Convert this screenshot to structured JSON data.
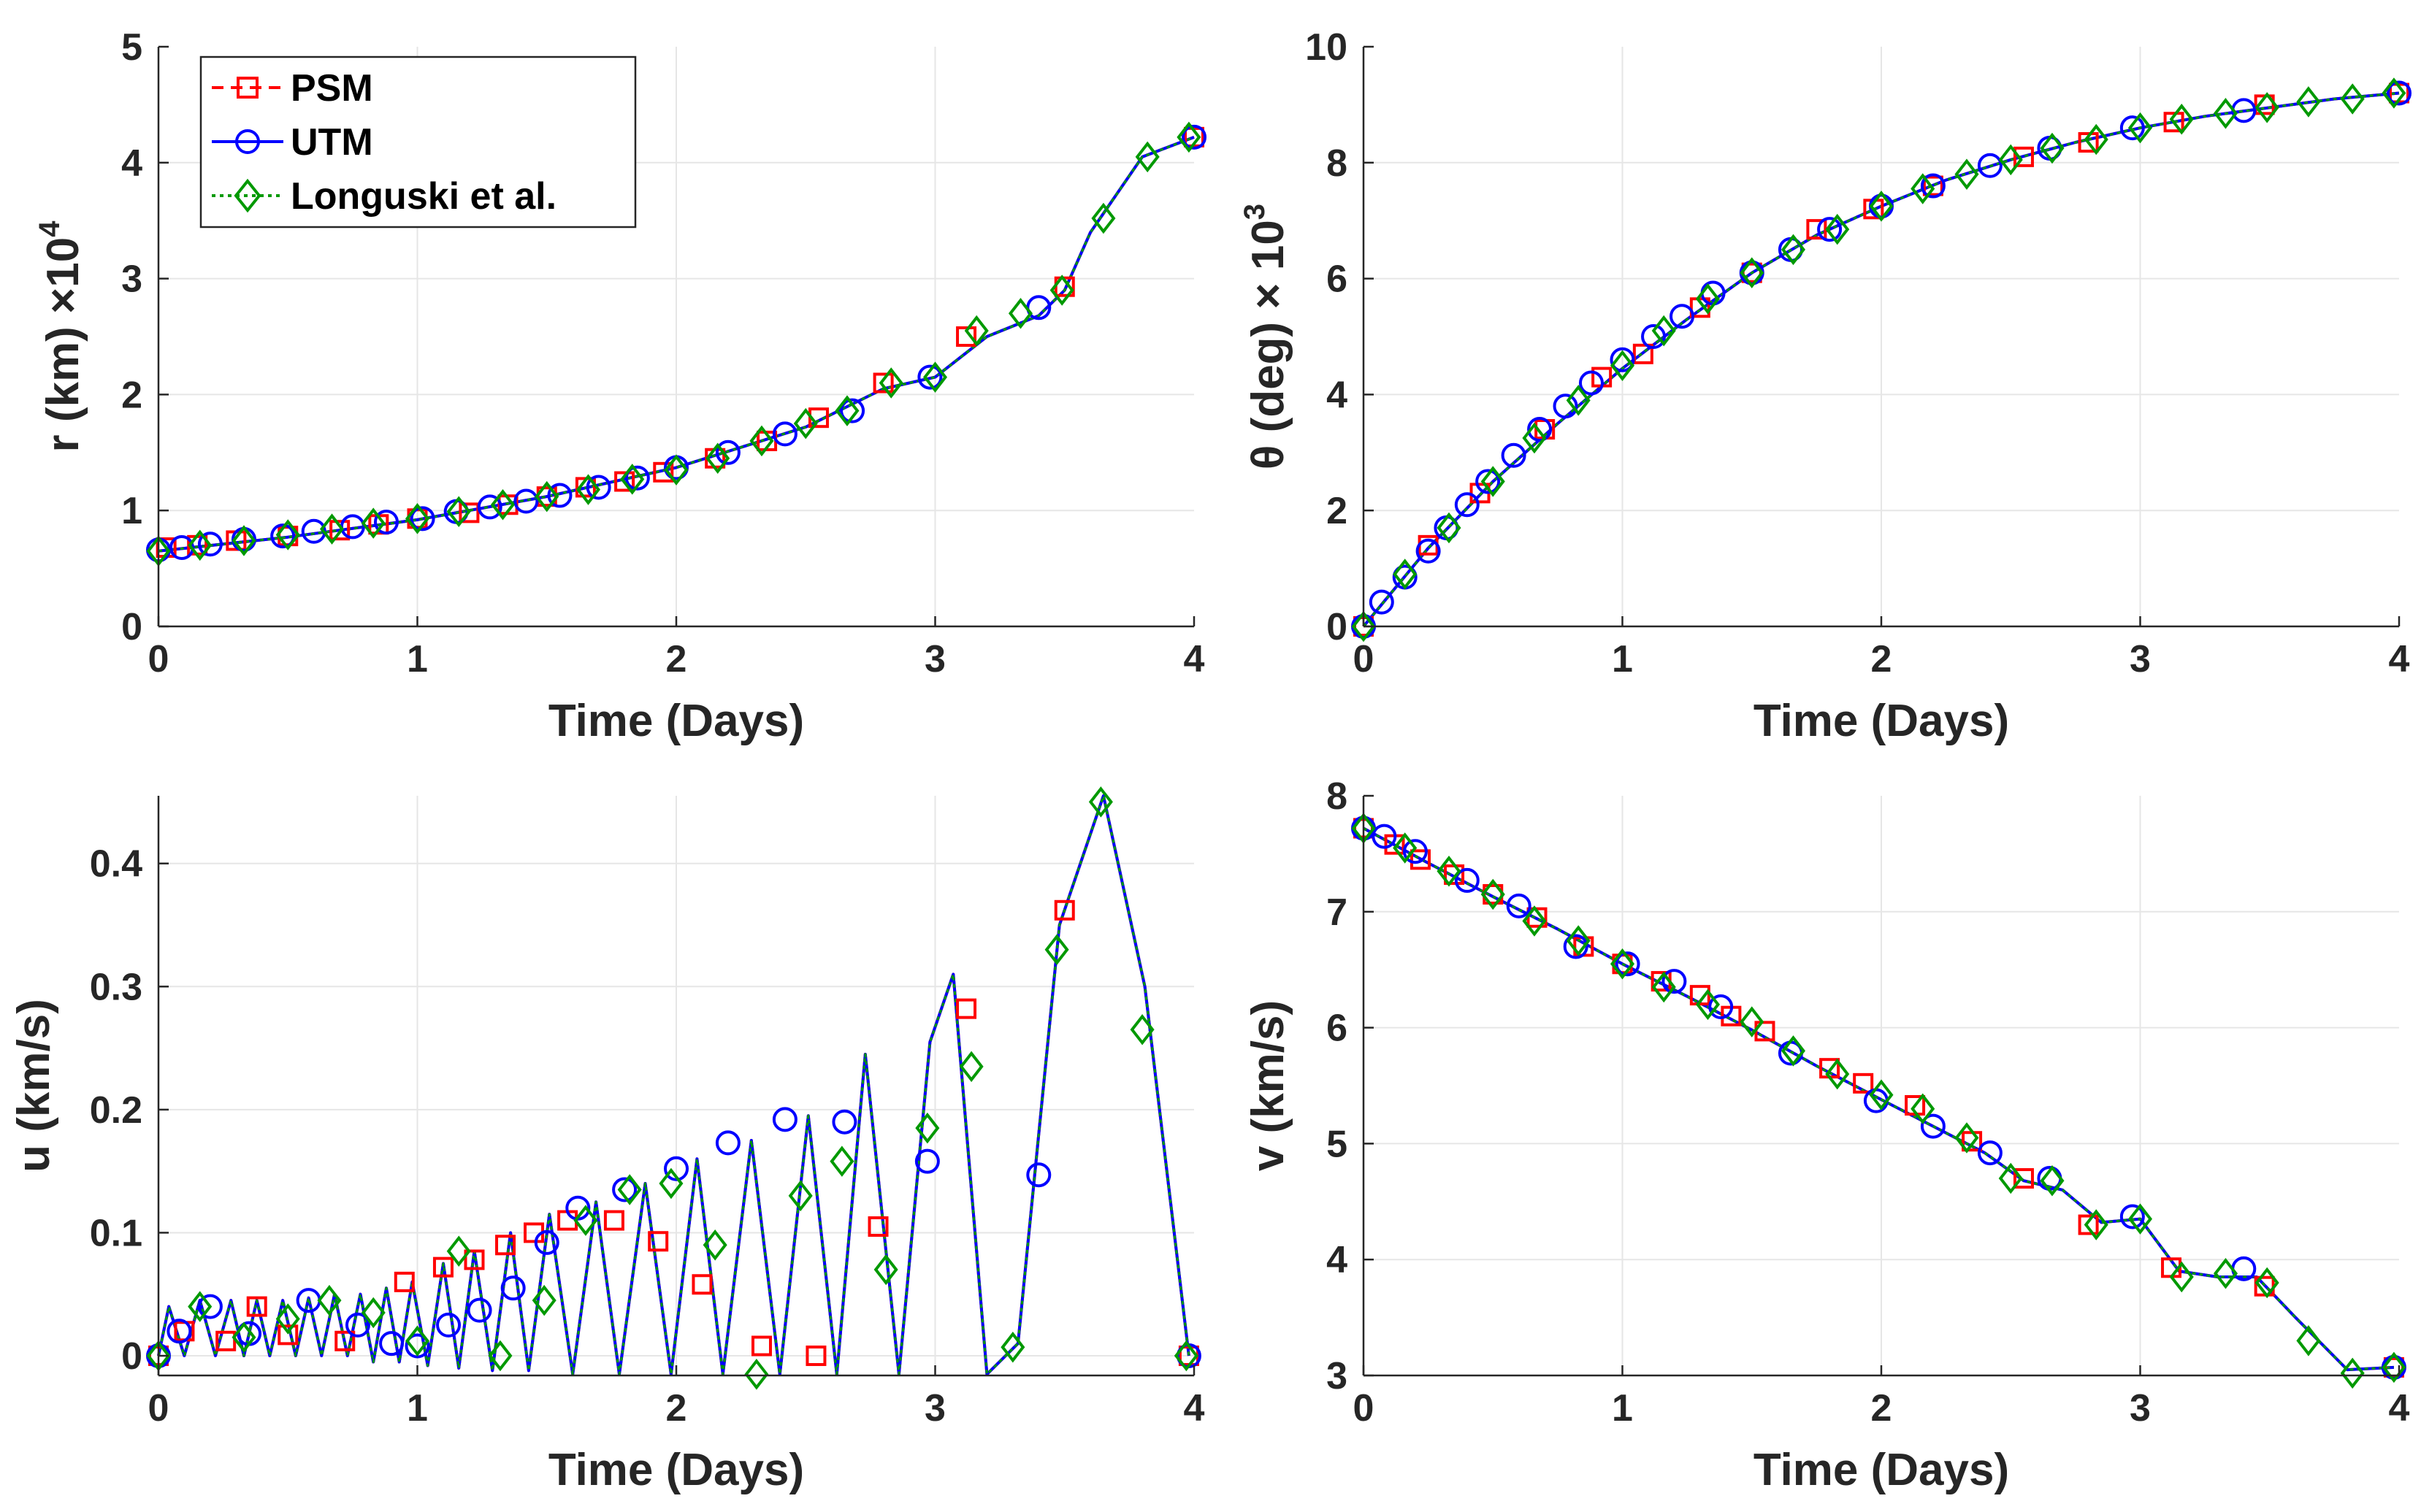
{
  "legend": {
    "entries": [
      {
        "key": "psm",
        "label": "PSM",
        "color": "#ff0000",
        "marker": "square",
        "dash": "dashed"
      },
      {
        "key": "utm",
        "label": "UTM",
        "color": "#0000ff",
        "marker": "circle",
        "dash": "solid"
      },
      {
        "key": "lon",
        "label": "Longuski et al.",
        "color": "#009900",
        "marker": "diamond",
        "dash": "dotted"
      }
    ]
  },
  "chart_data": [
    {
      "id": "r",
      "type": "line",
      "xlabel": "Time (Days)",
      "ylabel": "r (km) ×10",
      "ylabel_exponent": "4",
      "xlim": [
        0,
        4
      ],
      "ylim": [
        0,
        5
      ],
      "xticks": [
        0,
        1,
        2,
        3,
        4
      ],
      "yticks": [
        0,
        1,
        2,
        3,
        4,
        5
      ],
      "grid": true,
      "curve": {
        "x": [
          0,
          0.5,
          1,
          1.5,
          2,
          2.5,
          2.8,
          3,
          3.2,
          3.4,
          3.5,
          3.6,
          3.8,
          4
        ],
        "y": [
          0.65,
          0.77,
          0.92,
          1.12,
          1.37,
          1.72,
          2.05,
          2.15,
          2.5,
          2.68,
          2.9,
          3.4,
          4.05,
          4.22
        ]
      },
      "series": [
        {
          "name": "PSM",
          "x": [
            0.03,
            0.15,
            0.3,
            0.5,
            0.7,
            0.85,
            1.0,
            1.2,
            1.35,
            1.5,
            1.65,
            1.8,
            1.95,
            2.15,
            2.35,
            2.55,
            2.8,
            3.12,
            3.5,
            4.0
          ],
          "y": [
            0.68,
            0.7,
            0.74,
            0.78,
            0.83,
            0.88,
            0.93,
            0.98,
            1.05,
            1.12,
            1.2,
            1.25,
            1.33,
            1.45,
            1.6,
            1.8,
            2.1,
            2.5,
            2.93,
            4.22
          ]
        },
        {
          "name": "UTM",
          "x": [
            0.0,
            0.09,
            0.2,
            0.33,
            0.48,
            0.6,
            0.75,
            0.88,
            1.02,
            1.15,
            1.28,
            1.42,
            1.55,
            1.7,
            1.85,
            2.0,
            2.2,
            2.42,
            2.68,
            2.98,
            3.4,
            4.0
          ],
          "y": [
            0.66,
            0.68,
            0.71,
            0.75,
            0.78,
            0.82,
            0.86,
            0.9,
            0.93,
            0.99,
            1.03,
            1.08,
            1.13,
            1.2,
            1.28,
            1.37,
            1.5,
            1.66,
            1.86,
            2.15,
            2.75,
            4.22
          ]
        },
        {
          "name": "Longuski et al.",
          "x": [
            0.0,
            0.16,
            0.33,
            0.5,
            0.67,
            0.83,
            1.0,
            1.16,
            1.33,
            1.5,
            1.66,
            1.83,
            2.0,
            2.16,
            2.33,
            2.5,
            2.66,
            2.83,
            3.0,
            3.16,
            3.33,
            3.49,
            3.65,
            3.82,
            3.98
          ],
          "y": [
            0.65,
            0.7,
            0.74,
            0.79,
            0.84,
            0.89,
            0.93,
            0.99,
            1.05,
            1.12,
            1.18,
            1.27,
            1.35,
            1.45,
            1.6,
            1.75,
            1.86,
            2.1,
            2.15,
            2.55,
            2.7,
            2.9,
            3.52,
            4.05,
            4.22
          ]
        }
      ]
    },
    {
      "id": "theta",
      "type": "line",
      "xlabel": "Time (Days)",
      "ylabel": "θ (deg) × 10",
      "ylabel_exponent": "3",
      "xlim": [
        0,
        4
      ],
      "ylim": [
        0,
        10
      ],
      "xticks": [
        0,
        1,
        2,
        3,
        4
      ],
      "yticks": [
        0,
        2,
        4,
        6,
        8,
        10
      ],
      "grid": true,
      "curve": {
        "x": [
          0,
          0.25,
          0.5,
          0.75,
          1,
          1.25,
          1.5,
          1.75,
          2,
          2.25,
          2.5,
          2.75,
          3,
          3.25,
          3.5,
          3.75,
          4
        ],
        "y": [
          0,
          1.35,
          2.5,
          3.5,
          4.45,
          5.3,
          6.1,
          6.75,
          7.25,
          7.7,
          8.05,
          8.35,
          8.6,
          8.8,
          8.95,
          9.1,
          9.2
        ]
      },
      "series": [
        {
          "name": "PSM",
          "x": [
            0.0,
            0.25,
            0.45,
            0.7,
            0.92,
            1.08,
            1.3,
            1.5,
            1.75,
            1.97,
            2.2,
            2.55,
            2.8,
            3.13,
            3.48,
            4.0
          ],
          "y": [
            0,
            1.4,
            2.3,
            3.4,
            4.3,
            4.7,
            5.5,
            6.1,
            6.85,
            7.2,
            7.6,
            8.1,
            8.35,
            8.7,
            9.0,
            9.2
          ]
        },
        {
          "name": "UTM",
          "x": [
            0.0,
            0.07,
            0.16,
            0.25,
            0.32,
            0.4,
            0.48,
            0.58,
            0.68,
            0.78,
            0.88,
            1.0,
            1.12,
            1.23,
            1.35,
            1.5,
            1.65,
            1.8,
            2.0,
            2.2,
            2.42,
            2.65,
            2.97,
            3.4,
            4.0
          ],
          "y": [
            0,
            0.42,
            0.85,
            1.3,
            1.7,
            2.1,
            2.5,
            2.95,
            3.4,
            3.8,
            4.2,
            4.6,
            5.0,
            5.35,
            5.75,
            6.1,
            6.5,
            6.85,
            7.25,
            7.6,
            7.95,
            8.25,
            8.6,
            8.9,
            9.2
          ]
        },
        {
          "name": "Longuski et al.",
          "x": [
            0.0,
            0.16,
            0.33,
            0.5,
            0.66,
            0.83,
            1.0,
            1.16,
            1.33,
            1.5,
            1.66,
            1.83,
            2.0,
            2.16,
            2.33,
            2.5,
            2.66,
            2.83,
            3.0,
            3.16,
            3.33,
            3.49,
            3.65,
            3.82,
            3.98
          ],
          "y": [
            0,
            0.9,
            1.7,
            2.5,
            3.25,
            3.9,
            4.5,
            5.1,
            5.65,
            6.1,
            6.5,
            6.85,
            7.25,
            7.55,
            7.8,
            8.05,
            8.25,
            8.4,
            8.6,
            8.75,
            8.85,
            8.95,
            9.05,
            9.1,
            9.2
          ]
        }
      ]
    },
    {
      "id": "u",
      "type": "line",
      "xlabel": "Time (Days)",
      "ylabel": "u (km/s)",
      "xlim": [
        0,
        4
      ],
      "ylim": [
        -0.016,
        0.455
      ],
      "xticks": [
        0,
        1,
        2,
        3,
        4
      ],
      "yticks": [
        0,
        0.1,
        0.2,
        0.3,
        0.4
      ],
      "ytick_labels": [
        "0",
        "0.1",
        "0.2",
        "0.3",
        "0.4"
      ],
      "grid": true,
      "curve": {
        "x": [
          0,
          0.04,
          0.1,
          0.16,
          0.22,
          0.28,
          0.33,
          0.38,
          0.43,
          0.48,
          0.53,
          0.58,
          0.63,
          0.68,
          0.73,
          0.78,
          0.83,
          0.88,
          0.93,
          0.98,
          1.04,
          1.1,
          1.16,
          1.22,
          1.29,
          1.36,
          1.43,
          1.51,
          1.6,
          1.69,
          1.78,
          1.88,
          1.98,
          2.08,
          2.18,
          2.29,
          2.4,
          2.51,
          2.62,
          2.73,
          2.86,
          2.98,
          3.07,
          3.2,
          3.32,
          3.48,
          3.65,
          3.81,
          3.98
        ],
        "y": [
          0,
          0.04,
          0.0,
          0.045,
          0.0,
          0.045,
          0.0,
          0.045,
          0.0,
          0.045,
          0.0,
          0.047,
          0.0,
          0.05,
          0.0,
          0.05,
          -0.005,
          0.055,
          -0.005,
          0.06,
          -0.008,
          0.075,
          -0.01,
          0.085,
          -0.012,
          0.1,
          -0.012,
          0.115,
          -0.015,
          0.125,
          -0.015,
          0.14,
          -0.015,
          0.16,
          -0.015,
          0.175,
          -0.015,
          0.195,
          -0.015,
          0.245,
          -0.015,
          0.255,
          0.31,
          -0.015,
          0.01,
          0.35,
          0.455,
          0.3,
          0.0
        ]
      },
      "series": [
        {
          "name": "PSM",
          "x": [
            0.0,
            0.1,
            0.26,
            0.38,
            0.5,
            0.72,
            0.95,
            1.1,
            1.22,
            1.34,
            1.45,
            1.58,
            1.76,
            1.93,
            2.1,
            2.33,
            2.54,
            2.78,
            3.12,
            3.5,
            3.98
          ],
          "y": [
            0.0,
            0.02,
            0.012,
            0.04,
            0.017,
            0.012,
            0.06,
            0.072,
            0.078,
            0.09,
            0.1,
            0.11,
            0.11,
            0.093,
            0.058,
            0.008,
            0.0,
            0.105,
            0.282,
            0.362,
            0.0
          ]
        },
        {
          "name": "UTM",
          "x": [
            0.0,
            0.08,
            0.2,
            0.35,
            0.58,
            0.77,
            0.9,
            1.0,
            1.12,
            1.24,
            1.37,
            1.5,
            1.62,
            1.8,
            2.0,
            2.2,
            2.42,
            2.65,
            2.97,
            3.4,
            3.98
          ],
          "y": [
            0.0,
            0.02,
            0.04,
            0.018,
            0.045,
            0.025,
            0.01,
            0.008,
            0.025,
            0.037,
            0.055,
            0.092,
            0.12,
            0.135,
            0.152,
            0.173,
            0.192,
            0.19,
            0.158,
            0.147,
            0.0
          ]
        },
        {
          "name": "Longuski et al.",
          "x": [
            0.0,
            0.16,
            0.33,
            0.5,
            0.66,
            0.83,
            1.0,
            1.16,
            1.32,
            1.49,
            1.65,
            1.82,
            1.98,
            2.15,
            2.31,
            2.48,
            2.64,
            2.81,
            2.97,
            3.14,
            3.3,
            3.47,
            3.64,
            3.8,
            3.97
          ],
          "y": [
            0.0,
            0.04,
            0.015,
            0.03,
            0.045,
            0.035,
            0.012,
            0.085,
            0.0,
            0.045,
            0.11,
            0.135,
            0.14,
            0.09,
            -0.015,
            0.13,
            0.158,
            0.07,
            0.185,
            0.235,
            0.007,
            0.33,
            0.45,
            0.265,
            0.0
          ]
        }
      ]
    },
    {
      "id": "v",
      "type": "line",
      "xlabel": "Time (Days)",
      "ylabel": "v (km/s)",
      "xlim": [
        0,
        4
      ],
      "ylim": [
        3,
        8
      ],
      "xticks": [
        0,
        1,
        2,
        3,
        4
      ],
      "yticks": [
        3,
        4,
        5,
        6,
        7,
        8
      ],
      "grid": true,
      "curve": {
        "x": [
          0,
          0.25,
          0.5,
          0.75,
          1,
          1.25,
          1.5,
          1.75,
          2,
          2.2,
          2.4,
          2.55,
          2.7,
          2.85,
          3.0,
          3.15,
          3.3,
          3.45,
          3.6,
          3.8,
          3.98
        ],
        "y": [
          7.72,
          7.42,
          7.13,
          6.85,
          6.55,
          6.27,
          5.98,
          5.67,
          5.38,
          5.15,
          4.92,
          4.68,
          4.6,
          4.32,
          4.35,
          3.9,
          3.85,
          3.85,
          3.5,
          3.05,
          3.07
        ]
      },
      "series": [
        {
          "name": "PSM",
          "x": [
            0.0,
            0.12,
            0.22,
            0.35,
            0.5,
            0.67,
            0.85,
            1.0,
            1.15,
            1.3,
            1.42,
            1.55,
            1.8,
            1.93,
            2.13,
            2.35,
            2.55,
            2.8,
            3.12,
            3.48,
            3.98
          ],
          "y": [
            7.72,
            7.58,
            7.45,
            7.32,
            7.15,
            6.95,
            6.7,
            6.55,
            6.4,
            6.28,
            6.1,
            5.97,
            5.65,
            5.52,
            5.33,
            5.02,
            4.7,
            4.3,
            3.93,
            3.77,
            3.07
          ]
        },
        {
          "name": "UTM",
          "x": [
            0.0,
            0.08,
            0.2,
            0.4,
            0.6,
            0.82,
            1.02,
            1.2,
            1.38,
            1.65,
            1.98,
            2.2,
            2.42,
            2.65,
            2.97,
            3.4,
            3.98
          ],
          "y": [
            7.72,
            7.65,
            7.52,
            7.27,
            7.05,
            6.7,
            6.55,
            6.4,
            6.18,
            5.78,
            5.37,
            5.15,
            4.92,
            4.7,
            4.37,
            3.92,
            3.07
          ]
        },
        {
          "name": "Longuski et al.",
          "x": [
            0.0,
            0.16,
            0.33,
            0.5,
            0.66,
            0.83,
            1.0,
            1.16,
            1.33,
            1.5,
            1.66,
            1.83,
            2.0,
            2.16,
            2.33,
            2.5,
            2.66,
            2.83,
            3.0,
            3.16,
            3.33,
            3.49,
            3.65,
            3.82,
            3.98
          ],
          "y": [
            7.72,
            7.55,
            7.35,
            7.15,
            6.92,
            6.75,
            6.55,
            6.35,
            6.2,
            6.05,
            5.8,
            5.6,
            5.42,
            5.3,
            5.05,
            4.7,
            4.68,
            4.3,
            4.35,
            3.85,
            3.88,
            3.8,
            3.3,
            3.02,
            3.07
          ]
        }
      ]
    }
  ]
}
